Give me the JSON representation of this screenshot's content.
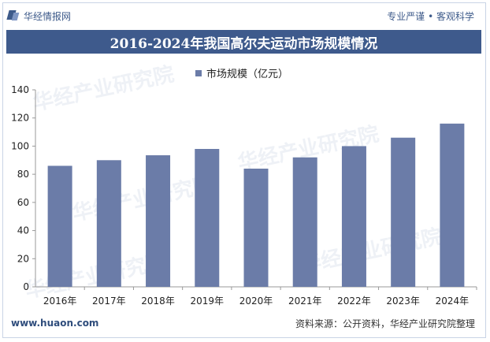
{
  "header": {
    "brand_name": "华经情报网",
    "slogan": "专业严谨 • 客观科学"
  },
  "colors": {
    "accent": "#3e5a8c",
    "bar": "#6b7ca8"
  },
  "watermark_text": "华经产业研究院",
  "chart_data": {
    "type": "bar",
    "title": "2016-2024年我国高尔夫运动市场规模情况",
    "categories": [
      "2016年",
      "2017年",
      "2018年",
      "2019年",
      "2020年",
      "2021年",
      "2022年",
      "2023年",
      "2024年"
    ],
    "series": [
      {
        "name": "市场规模（亿元）",
        "values": [
          86,
          90,
          93.5,
          98,
          84,
          92,
          100,
          106,
          116
        ]
      }
    ],
    "yticks": [
      "0",
      "20",
      "40",
      "60",
      "80",
      "100",
      "120",
      "140"
    ],
    "ylim": [
      0,
      140
    ],
    "grid": false,
    "legend": "top-center"
  },
  "footer": {
    "url": "www.huaon.com",
    "source": "资料来源：公开资料，华经产业研究院整理"
  }
}
